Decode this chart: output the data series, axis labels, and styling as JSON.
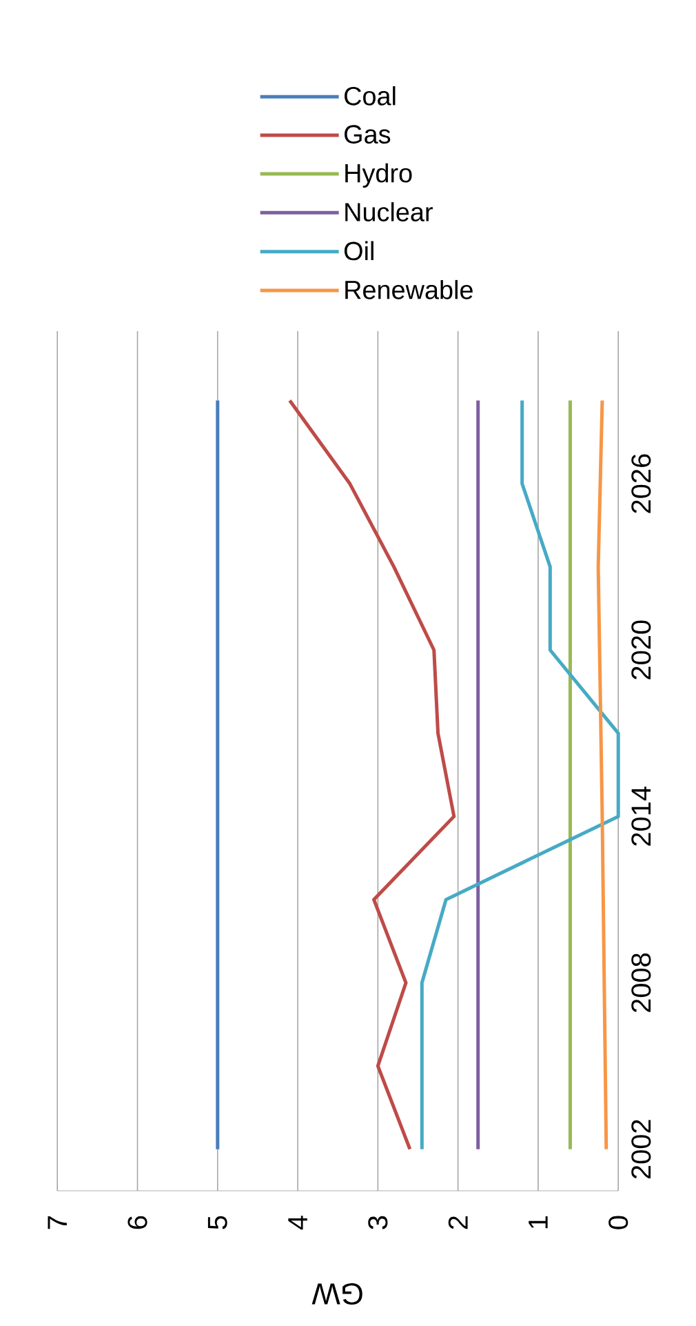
{
  "chart_data": {
    "type": "line",
    "orientation": "horizontal",
    "xlabel": "GW",
    "xlim": [
      7,
      0
    ],
    "xticks": [
      0,
      1,
      2,
      3,
      4,
      5,
      6,
      7
    ],
    "ylim": [
      2000.5,
      2031.5
    ],
    "yticks": [
      2002,
      2008,
      2014,
      2020,
      2026
    ],
    "grid": "x",
    "legend": "top",
    "marker": "none",
    "series": [
      {
        "name": "Coal",
        "color": "#4a7ebb",
        "x": [
          2002,
          2008,
          2014,
          2020,
          2026,
          2029
        ],
        "values": [
          5.0,
          5.0,
          5.0,
          5.0,
          5.0,
          5.0
        ]
      },
      {
        "name": "Gas",
        "color": "#be4b48",
        "x": [
          2002,
          2005,
          2008,
          2011,
          2014,
          2017,
          2020,
          2023,
          2026,
          2029
        ],
        "values": [
          2.6,
          3.0,
          2.65,
          3.05,
          2.05,
          2.25,
          2.3,
          2.8,
          3.35,
          4.1
        ]
      },
      {
        "name": "Hydro",
        "color": "#98b954",
        "x": [
          2002,
          2014,
          2029
        ],
        "values": [
          0.6,
          0.6,
          0.6
        ]
      },
      {
        "name": "Nuclear",
        "color": "#7d60a0",
        "x": [
          2002,
          2014,
          2029
        ],
        "values": [
          1.75,
          1.75,
          1.75
        ]
      },
      {
        "name": "Oil",
        "color": "#46aac5",
        "x": [
          2002,
          2008,
          2011,
          2014,
          2017,
          2020,
          2023,
          2026,
          2029
        ],
        "values": [
          2.45,
          2.45,
          2.15,
          0.0,
          0.0,
          0.85,
          0.85,
          1.2,
          1.2
        ]
      },
      {
        "name": "Renewable",
        "color": "#f79646",
        "x": [
          2002,
          2014,
          2023,
          2029
        ],
        "values": [
          0.15,
          0.2,
          0.25,
          0.2
        ]
      }
    ]
  }
}
